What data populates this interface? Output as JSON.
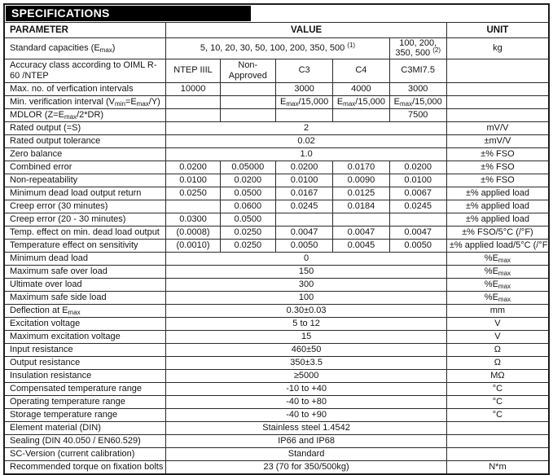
{
  "title": "SPECIFICATIONS",
  "colors": {
    "title_bar_bg": "#000000",
    "title_bar_text": "#ffffff",
    "border": "#2a2a2a",
    "text": "#141414",
    "background": "#ffffff"
  },
  "header": {
    "parameter": "PARAMETER",
    "value": "VALUE",
    "unit": "UNIT"
  },
  "capacity_row": {
    "parameter": "Standard capacities (E~max~)",
    "value_main": "5, 10, 20, 30, 50, 100, 200, 350, 500 ^(1)^",
    "value_alt": "100, 200, 350, 500 ^(2)^",
    "unit": "kg"
  },
  "accuracy_row": {
    "parameter": "Accuracy class according to OIML R-60 /NTEP",
    "classes": [
      "NTEP IIIL",
      "Non-Approved",
      "C3",
      "C4",
      "C3MI7.5"
    ],
    "unit": ""
  },
  "rows": [
    {
      "param": "Max. no. of verfication intervals",
      "values": [
        "10000",
        "",
        "3000",
        "4000",
        "3000"
      ],
      "unit": ""
    },
    {
      "param": "Min. verification interval (V~min~=E~max~/Y)",
      "values": [
        "",
        "",
        "E~max~/15,000",
        "E~max~/15,000",
        "E~max~/15,000"
      ],
      "unit": ""
    },
    {
      "param": "MDLOR (Z=E~max~/2*DR)",
      "values": [
        "",
        "",
        "",
        "",
        "7500"
      ],
      "unit": ""
    },
    {
      "param": "Rated output (=S)",
      "span": "2",
      "unit": "mV/V"
    },
    {
      "param": "Rated output tolerance",
      "span": "0.02",
      "unit": "±mV/V"
    },
    {
      "param": "Zero balance",
      "span": "1.0",
      "unit": "±% FSO"
    },
    {
      "param": "Combined error",
      "values": [
        "0.0200",
        "0.05000",
        "0.0200",
        "0.0170",
        "0.0200"
      ],
      "unit": "±% FSO"
    },
    {
      "param": "Non-repeatability",
      "values": [
        "0.0100",
        "0.0200",
        "0.0100",
        "0.0090",
        "0.0100"
      ],
      "unit": "±% FSO"
    },
    {
      "param": "Minimum dead load output return",
      "values": [
        "0.0250",
        "0.0500",
        "0.0167",
        "0.0125",
        "0.0067"
      ],
      "unit": "±% applied load"
    },
    {
      "param": "Creep error (30 minutes)",
      "values": [
        "",
        "0.0600",
        "0.0245",
        "0.0184",
        "0.0245"
      ],
      "unit": "±% applied load"
    },
    {
      "param": "Creep error (20 - 30 minutes)",
      "values": [
        "0.0300",
        "0.0500",
        "",
        "",
        ""
      ],
      "unit": "±% applied load"
    },
    {
      "param": "Temp. effect on min. dead load output",
      "values": [
        "(0.0008)",
        "0.0250",
        "0.0047",
        "0.0047",
        "0.0047"
      ],
      "unit": "±% FSO/5°C (/°F)"
    },
    {
      "param": "Temperature effect on sensitivity",
      "values": [
        "(0.0010)",
        "0.0250",
        "0.0050",
        "0.0045",
        "0.0050"
      ],
      "unit": "±% applied load/5°C (/°F"
    },
    {
      "param": "Minimum dead load",
      "span": "0",
      "unit": "%E~max~"
    },
    {
      "param": "Maximum safe over load",
      "span": "150",
      "unit": "%E~max~"
    },
    {
      "param": "Ultimate over load",
      "span": "300",
      "unit": "%E~max~"
    },
    {
      "param": "Maximum safe side load",
      "span": "100",
      "unit": "%E~max~"
    },
    {
      "param": "Deflection at E~max~",
      "span": "0.30±0.03",
      "unit": "mm"
    },
    {
      "param": "Excitation voltage",
      "span": "5 to 12",
      "unit": "V"
    },
    {
      "param": "Maximum excitation voltage",
      "span": "15",
      "unit": "V"
    },
    {
      "param": "Input resistance",
      "span": "460±50",
      "unit": "Ω"
    },
    {
      "param": "Output resistance",
      "span": "350±3.5",
      "unit": "Ω"
    },
    {
      "param": "Insulation resistance",
      "span": "≥5000",
      "unit": "MΩ"
    },
    {
      "param": "Compensated temperature range",
      "span": "-10 to +40",
      "unit": "°C"
    },
    {
      "param": "Operating temperature range",
      "span": "-40 to +80",
      "unit": "°C"
    },
    {
      "param": "Storage temperature range",
      "span": "-40 to +90",
      "unit": "°C"
    },
    {
      "param": "Element material (DIN)",
      "span": "Stainless steel 1.4542",
      "unit": ""
    },
    {
      "param": "Sealing (DIN 40.050 / EN60.529)",
      "span": "IP66 and IP68",
      "unit": ""
    },
    {
      "param": "SC-Version (current calibration)",
      "span": "Standard",
      "unit": ""
    },
    {
      "param": "Recommended torque on fixation bolts",
      "span": "23 (70 for 350/500kg)",
      "unit": "N*m"
    }
  ]
}
